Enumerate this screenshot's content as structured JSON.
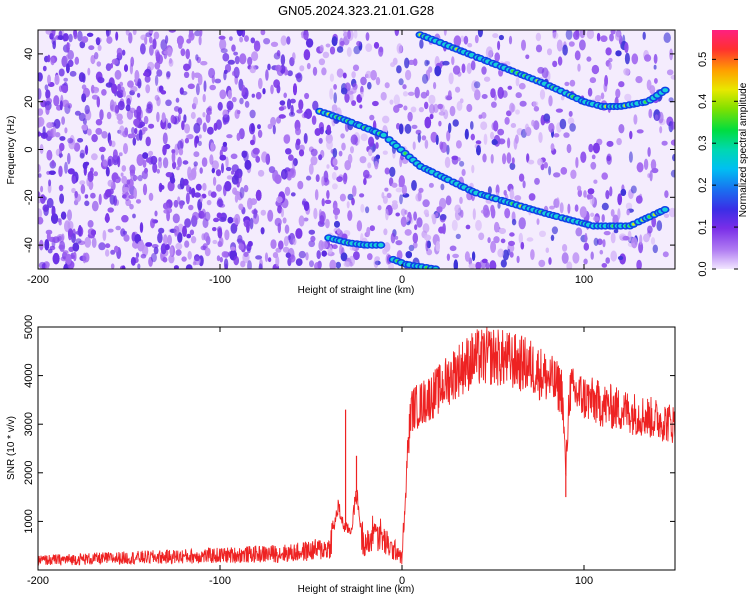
{
  "title": "GN05.2024.323.21.01.G28",
  "chart_data": [
    {
      "type": "heatmap",
      "xlabel": "Height of straight line (km)",
      "ylabel": "Frequency (Hz)",
      "xlim": [
        -200,
        150
      ],
      "ylim": [
        -50,
        50
      ],
      "xticks": [
        -200,
        -100,
        0,
        100
      ],
      "yticks": [
        -40,
        -20,
        0,
        20,
        40
      ],
      "colorbar": {
        "label": "Normalized spectral amplitude",
        "range": [
          0,
          0.57
        ],
        "ticks": [
          0.0,
          0.1,
          0.2,
          0.3,
          0.4,
          0.5
        ]
      },
      "tracks": [
        {
          "x": [
            -45,
            -30,
            -10,
            10,
            40,
            80,
            105,
            125,
            145
          ],
          "y": [
            16,
            12,
            6,
            -7,
            -18,
            -27,
            -32,
            -32,
            -25
          ]
        },
        {
          "x": [
            10,
            30,
            60,
            80,
            100,
            110,
            120,
            135,
            145
          ],
          "y": [
            48,
            42,
            33,
            27,
            20,
            18,
            18,
            20,
            25
          ]
        },
        {
          "x": [
            -40,
            -30,
            -20,
            -12
          ],
          "y": [
            -37,
            -39,
            -40,
            -40
          ]
        },
        {
          "x": [
            -5,
            2,
            10,
            18
          ],
          "y": [
            -46,
            -48,
            -49,
            -50
          ]
        }
      ]
    },
    {
      "type": "line",
      "xlabel": "Height of straight line (km)",
      "ylabel": "SNR (10 * v/v)",
      "xlim": [
        -200,
        150
      ],
      "ylim": [
        0,
        5000
      ],
      "xticks": [
        -200,
        -100,
        0,
        100
      ],
      "yticks": [
        1000,
        2000,
        3000,
        4000,
        5000
      ],
      "color": "#ee2222",
      "envelope": {
        "x": [
          -200,
          -150,
          -100,
          -60,
          -40,
          -35,
          -32,
          -28,
          -25,
          -22,
          -18,
          -15,
          -10,
          -5,
          -2,
          0,
          2,
          3,
          5,
          10,
          20,
          30,
          40,
          50,
          60,
          70,
          80,
          88,
          90,
          92,
          100,
          110,
          120,
          130,
          140,
          150
        ],
        "y": [
          200,
          250,
          300,
          350,
          450,
          1300,
          900,
          800,
          1600,
          700,
          500,
          900,
          600,
          400,
          400,
          200,
          1500,
          2400,
          3300,
          3400,
          3700,
          4100,
          4350,
          4400,
          4300,
          4200,
          3950,
          3700,
          2000,
          3700,
          3550,
          3400,
          3300,
          3200,
          3100,
          3000
        ]
      },
      "spikes": [
        {
          "x": -31,
          "y": 3300
        },
        {
          "x": -25,
          "y": 2350
        },
        {
          "x": 90,
          "y": 1500
        }
      ]
    }
  ]
}
